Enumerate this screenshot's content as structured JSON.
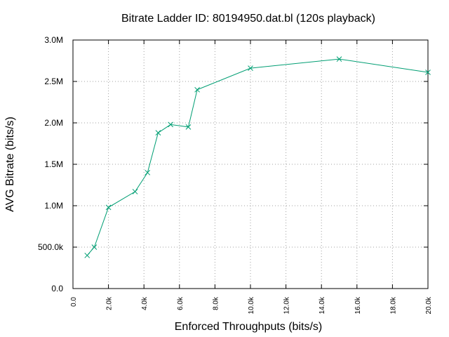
{
  "chart_data": {
    "type": "line",
    "title": "Bitrate Ladder ID: 80194950.dat.bl (120s playback)",
    "xlabel": "Enforced Throughputs (bits/s)",
    "ylabel": "AVG Bitrate (bits/s)",
    "xlim": [
      0,
      20000
    ],
    "ylim": [
      0,
      3000000
    ],
    "grid": true,
    "x_ticks": [
      {
        "value": 0,
        "label": "0.0"
      },
      {
        "value": 2000,
        "label": "2.0k"
      },
      {
        "value": 4000,
        "label": "4.0k"
      },
      {
        "value": 6000,
        "label": "6.0k"
      },
      {
        "value": 8000,
        "label": "8.0k"
      },
      {
        "value": 10000,
        "label": "10.0k"
      },
      {
        "value": 12000,
        "label": "12.0k"
      },
      {
        "value": 14000,
        "label": "14.0k"
      },
      {
        "value": 16000,
        "label": "16.0k"
      },
      {
        "value": 18000,
        "label": "18.0k"
      },
      {
        "value": 20000,
        "label": "20.0k"
      }
    ],
    "y_ticks": [
      {
        "value": 0,
        "label": "0.0"
      },
      {
        "value": 500000,
        "label": "500.0k"
      },
      {
        "value": 1000000,
        "label": "1.0M"
      },
      {
        "value": 1500000,
        "label": "1.5M"
      },
      {
        "value": 2000000,
        "label": "2.0M"
      },
      {
        "value": 2500000,
        "label": "2.5M"
      },
      {
        "value": 3000000,
        "label": "3.0M"
      }
    ],
    "series": [
      {
        "color": "#009e73",
        "marker": "x",
        "x": [
          800,
          1200,
          2000,
          3500,
          4200,
          4800,
          5500,
          6500,
          7000,
          10000,
          15000,
          20000
        ],
        "y": [
          400000,
          500000,
          980000,
          1170000,
          1400000,
          1880000,
          1980000,
          1950000,
          2400000,
          2660000,
          2770000,
          2610000
        ]
      }
    ]
  }
}
